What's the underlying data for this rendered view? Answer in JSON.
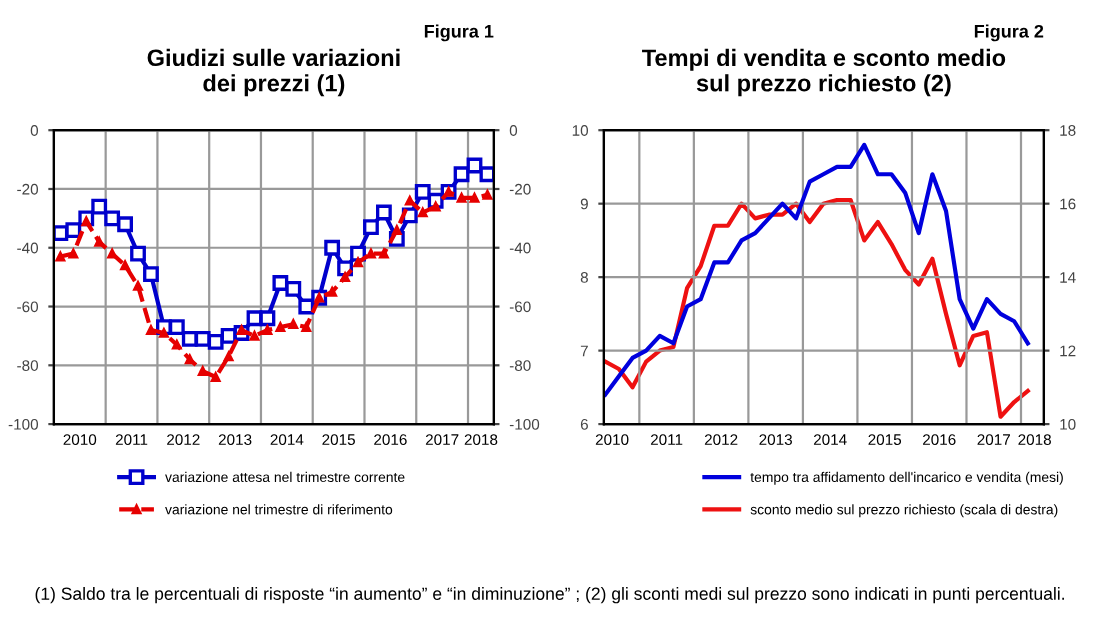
{
  "chart_data": [
    {
      "type": "line",
      "title": "Giudizi sulle variazioni\ndei prezzi (1)",
      "annotations": [
        "Figura 1"
      ],
      "xlim": [
        2010,
        2018.5
      ],
      "xticks": [
        {
          "value": 2010.5,
          "label": "2010"
        },
        {
          "value": 2011.5,
          "label": "2011"
        },
        {
          "value": 2012.5,
          "label": "2012"
        },
        {
          "value": 2013.5,
          "label": "2013"
        },
        {
          "value": 2014.5,
          "label": "2014"
        },
        {
          "value": 2015.5,
          "label": "2015"
        },
        {
          "value": 2016.5,
          "label": "2016"
        },
        {
          "value": 2017.5,
          "label": "2017"
        },
        {
          "value": 2018.25,
          "label": "2018"
        },
        {
          "value": 2011,
          "label": null
        },
        {
          "value": 2012,
          "label": null
        },
        {
          "value": 2013,
          "label": null
        },
        {
          "value": 2014,
          "label": null
        },
        {
          "value": 2015,
          "label": null
        },
        {
          "value": 2016,
          "label": null
        },
        {
          "value": 2017,
          "label": null
        },
        {
          "value": 2018,
          "label": null
        }
      ],
      "ylim": [
        -100,
        0
      ],
      "yticks": [
        -100,
        -80,
        -60,
        -40,
        -20,
        0
      ],
      "y2lim": [
        -100,
        0
      ],
      "y2ticks": [
        -100,
        -80,
        -60,
        -40,
        -20,
        0
      ],
      "grid": true,
      "legend": "bottom",
      "x": [
        2010.125,
        2010.375,
        2010.625,
        2010.875,
        2011.125,
        2011.375,
        2011.625,
        2011.875,
        2012.125,
        2012.375,
        2012.625,
        2012.875,
        2013.125,
        2013.375,
        2013.625,
        2013.875,
        2014.125,
        2014.375,
        2014.625,
        2014.875,
        2015.125,
        2015.375,
        2015.625,
        2015.875,
        2016.125,
        2016.375,
        2016.625,
        2016.875,
        2017.125,
        2017.375,
        2017.625,
        2017.875,
        2018.125,
        2018.375
      ],
      "series": [
        {
          "name": "variazione attesa nel trimestre corrente",
          "color": "#0000cc",
          "marker": "square",
          "line_style": "solid",
          "values": [
            -35,
            -34,
            -30,
            -26,
            -30,
            -32,
            -42,
            -49,
            -67,
            -67,
            -71,
            -71,
            -72,
            -70,
            -69,
            -64,
            -64,
            -52,
            -54,
            -60,
            -57,
            -40,
            -47,
            -42,
            -33,
            -28,
            -37,
            -29,
            -21,
            -24,
            -21,
            -15,
            -12,
            -15
          ]
        },
        {
          "name": "variazione nel trimestre di riferimento",
          "color": "#e60000",
          "marker": "triangle",
          "line_style": "dashed",
          "values": [
            -43,
            -42,
            -31,
            -38,
            -42,
            -46,
            -53,
            -68,
            -69,
            -73,
            -78,
            -82,
            -84,
            -77,
            -68,
            -70,
            -68,
            -67,
            -66,
            -67,
            -57,
            -55,
            -50,
            -45,
            -42,
            -42,
            -34,
            -24,
            -28,
            -26,
            -21,
            -23,
            -23,
            -22
          ]
        }
      ]
    },
    {
      "type": "line",
      "title": "Tempi di vendita e sconto medio\nsul prezzo richiesto (2)",
      "annotations": [
        "Figura 2",
        "(1) Saldo tra le percentuali di risposte “in aumento” e “in diminuzione” ; (2) gli sconti medi sul prezzo sono indicati in punti percentuali."
      ],
      "xlim": [
        2010.35,
        2018.42
      ],
      "xticks": [
        {
          "value": 2010.5,
          "label": "2010"
        },
        {
          "value": 2011.5,
          "label": "2011"
        },
        {
          "value": 2012.5,
          "label": "2012"
        },
        {
          "value": 2013.5,
          "label": "2013"
        },
        {
          "value": 2014.5,
          "label": "2014"
        },
        {
          "value": 2015.5,
          "label": "2015"
        },
        {
          "value": 2016.5,
          "label": "2016"
        },
        {
          "value": 2017.5,
          "label": "2017"
        },
        {
          "value": 2018.25,
          "label": "2018"
        },
        {
          "value": 2011,
          "label": null
        },
        {
          "value": 2012,
          "label": null
        },
        {
          "value": 2013,
          "label": null
        },
        {
          "value": 2014,
          "label": null
        },
        {
          "value": 2015,
          "label": null
        },
        {
          "value": 2016,
          "label": null
        },
        {
          "value": 2017,
          "label": null
        },
        {
          "value": 2018,
          "label": null
        }
      ],
      "ylim": [
        6,
        10
      ],
      "yticks": [
        6,
        7,
        8,
        9,
        10
      ],
      "y2lim": [
        10,
        18
      ],
      "y2ticks": [
        10,
        12,
        14,
        16,
        18
      ],
      "grid": true,
      "legend": "bottom",
      "x": [
        2010.375,
        2010.625,
        2010.875,
        2011.125,
        2011.375,
        2011.625,
        2011.875,
        2012.125,
        2012.375,
        2012.625,
        2012.875,
        2013.125,
        2013.375,
        2013.625,
        2013.875,
        2014.125,
        2014.375,
        2014.625,
        2014.875,
        2015.125,
        2015.375,
        2015.625,
        2015.875,
        2016.125,
        2016.375,
        2016.625,
        2016.875,
        2017.125,
        2017.375,
        2017.625,
        2017.875,
        2018.125
      ],
      "series": [
        {
          "name": "tempo tra affidamento dell'incarico e vendita (mesi)",
          "color": "#0000dd",
          "values": [
            6.4,
            6.65,
            6.9,
            7.0,
            7.2,
            7.1,
            7.6,
            7.7,
            8.2,
            8.2,
            8.5,
            8.6,
            8.8,
            9.0,
            8.8,
            9.3,
            9.4,
            9.5,
            9.5,
            9.8,
            9.4,
            9.4,
            9.15,
            8.6,
            9.4,
            8.9,
            7.7,
            7.3,
            7.7,
            7.5,
            7.4,
            7.1
          ]
        },
        {
          "name": "sconto medio sul prezzo richiesto (scala di destra)",
          "color": "#ee1111",
          "axis": "y2",
          "values": [
            11.7,
            11.5,
            11.0,
            11.7,
            12.0,
            12.1,
            13.7,
            14.3,
            15.4,
            15.4,
            16.0,
            15.6,
            15.7,
            15.7,
            16.0,
            15.5,
            16.0,
            16.1,
            16.1,
            15.0,
            15.5,
            14.9,
            14.2,
            13.8,
            14.5,
            13.0,
            11.6,
            12.4,
            12.5,
            10.2,
            10.6,
            10.9
          ]
        }
      ]
    }
  ]
}
